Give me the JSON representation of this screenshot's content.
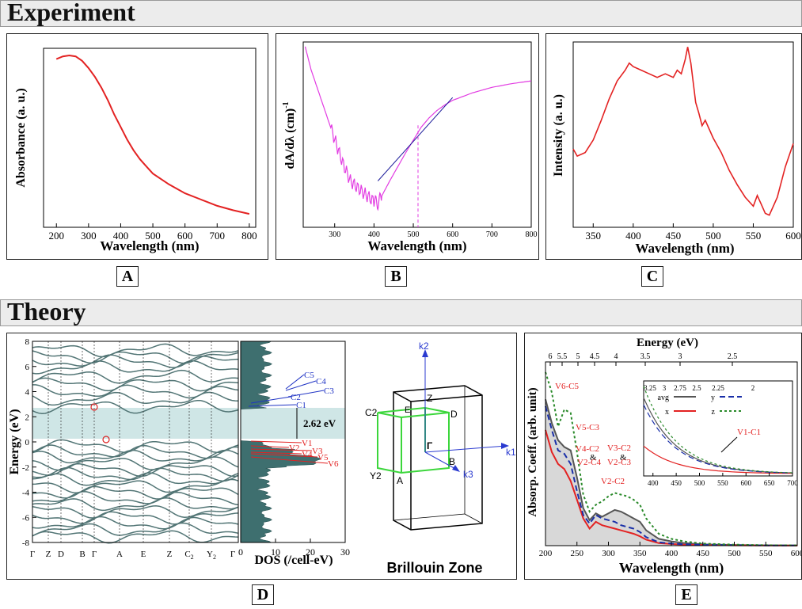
{
  "sections": {
    "experiment": "Experiment",
    "theory": "Theory"
  },
  "panel_labels": {
    "A": "A",
    "B": "B",
    "C": "C",
    "D": "D",
    "E": "E"
  },
  "chart_data": [
    {
      "type": "line",
      "panel": "A",
      "xlabel": "Wavelength (nm)",
      "ylabel": "Absorbance (a. u.)",
      "xlim": [
        160,
        820
      ],
      "ylim": [
        0,
        1.0
      ],
      "xticks": [
        200,
        300,
        400,
        500,
        600,
        700,
        800
      ],
      "series": [
        {
          "color": "#e32222",
          "x": [
            200,
            220,
            240,
            260,
            280,
            300,
            320,
            340,
            360,
            380,
            400,
            420,
            440,
            460,
            480,
            500,
            550,
            600,
            650,
            700,
            750,
            800
          ],
          "y": [
            0.94,
            0.955,
            0.96,
            0.955,
            0.93,
            0.89,
            0.84,
            0.78,
            0.71,
            0.63,
            0.56,
            0.49,
            0.43,
            0.38,
            0.34,
            0.3,
            0.24,
            0.19,
            0.155,
            0.12,
            0.095,
            0.075
          ]
        }
      ]
    },
    {
      "type": "line",
      "panel": "B",
      "xlabel": "Wavelength (nm)",
      "ylabel": "dA/dλ (cm)",
      "ylabel_superscript": "-1",
      "xlim": [
        220,
        800
      ],
      "ylim": [
        -1.0,
        1.0
      ],
      "xticks": [
        300,
        400,
        500,
        600,
        700,
        800
      ],
      "series": [
        {
          "color": "#e23be2",
          "x": [
            225,
            240,
            260,
            280,
            300,
            320,
            340,
            360,
            380,
            400,
            410,
            420,
            440,
            460,
            480,
            500,
            520,
            540,
            560,
            580,
            600,
            650,
            700,
            750,
            800
          ],
          "y": [
            0.95,
            0.7,
            0.45,
            0.2,
            -0.05,
            -0.3,
            -0.5,
            -0.58,
            -0.65,
            -0.72,
            -0.74,
            -0.66,
            -0.5,
            -0.35,
            -0.2,
            -0.06,
            0.08,
            0.18,
            0.26,
            0.32,
            0.37,
            0.45,
            0.51,
            0.55,
            0.58
          ]
        },
        {
          "color": "#1c1c9a",
          "x": [
            410,
            600
          ],
          "y": [
            -0.5,
            0.4
          ]
        }
      ],
      "vline": {
        "x": 512,
        "color": "#e23be2"
      }
    },
    {
      "type": "line",
      "panel": "C",
      "xlabel": "Wavelength (nm)",
      "ylabel": "Intensity (a. u.)",
      "xlim": [
        325,
        600
      ],
      "ylim": [
        0,
        1.0
      ],
      "xticks": [
        350,
        400,
        450,
        500,
        550,
        600
      ],
      "series": [
        {
          "color": "#e32222",
          "x": [
            325,
            330,
            340,
            350,
            360,
            370,
            380,
            390,
            395,
            400,
            410,
            420,
            430,
            440,
            450,
            455,
            460,
            465,
            468,
            472,
            478,
            482,
            486,
            490,
            500,
            510,
            520,
            530,
            540,
            550,
            555,
            560,
            565,
            570,
            580,
            590,
            600
          ],
          "y": [
            0.42,
            0.38,
            0.4,
            0.47,
            0.58,
            0.7,
            0.8,
            0.86,
            0.9,
            0.88,
            0.86,
            0.84,
            0.82,
            0.84,
            0.82,
            0.86,
            0.84,
            0.92,
            0.99,
            0.9,
            0.68,
            0.62,
            0.55,
            0.58,
            0.48,
            0.4,
            0.3,
            0.22,
            0.15,
            0.1,
            0.16,
            0.11,
            0.06,
            0.05,
            0.15,
            0.32,
            0.45
          ]
        }
      ]
    },
    {
      "type": "line",
      "panel": "D-bands",
      "ylabel": "Energy (eV)",
      "ylim": [
        -8,
        8
      ],
      "yticks": [
        -8,
        -6,
        -4,
        -2,
        0,
        2,
        4,
        6,
        8
      ],
      "kpoints": [
        "Γ",
        "Z",
        "D",
        "B",
        "Γ",
        "A",
        "E",
        "Z",
        "C",
        "Y",
        "Γ"
      ],
      "kpoint_subscripts": {
        "8": "2",
        "9": "2"
      },
      "gap_region": [
        0.1,
        2.62
      ],
      "band_color": "#527575"
    },
    {
      "type": "area",
      "panel": "D-dos",
      "xlabel": "DOS (/cell-eV)",
      "xlim": [
        0,
        30
      ],
      "xticks": [
        0,
        10,
        20,
        30
      ],
      "gap_label": "2.62 eV",
      "fill_color": "#3e6f6f",
      "transitions": [
        {
          "label": "C5",
          "color": "#1f33c4"
        },
        {
          "label": "C4",
          "color": "#1f33c4"
        },
        {
          "label": "C3",
          "color": "#1f33c4"
        },
        {
          "label": "C2",
          "color": "#1f33c4"
        },
        {
          "label": "C1",
          "color": "#1f33c4"
        },
        {
          "label": "V1",
          "color": "#e32222"
        },
        {
          "label": "V2",
          "color": "#e32222"
        },
        {
          "label": "V3",
          "color": "#e32222"
        },
        {
          "label": "V4",
          "color": "#e32222"
        },
        {
          "label": "V5",
          "color": "#e32222"
        },
        {
          "label": "V6",
          "color": "#e32222"
        }
      ]
    },
    {
      "type": "diagram",
      "panel": "D-bz",
      "title": "Brillouin Zone",
      "points": [
        "k2",
        "k1",
        "k3",
        "Z",
        "C2",
        "D",
        "E",
        "Γ",
        "Y2",
        "A",
        "B"
      ]
    },
    {
      "type": "line",
      "panel": "E",
      "xlabel": "Wavelength (nm)",
      "ylabel": "Absorp. Coeff. (arb. unit)",
      "x2label": "Energy (eV)",
      "xlim": [
        200,
        600
      ],
      "xticks": [
        200,
        250,
        300,
        350,
        400,
        450,
        500,
        550,
        600
      ],
      "x2ticks": [
        "6",
        "5.5",
        "5",
        "4.5",
        "4",
        "3.5",
        "3",
        "2.5"
      ],
      "series": [
        {
          "name": "avg",
          "color": "#555555",
          "fill": "#d8d8d8",
          "x": [
            200,
            210,
            220,
            230,
            240,
            250,
            260,
            270,
            280,
            290,
            300,
            310,
            320,
            330,
            340,
            350,
            360,
            380,
            400,
            420,
            450,
            500,
            550,
            600
          ],
          "y": [
            0.86,
            0.72,
            0.62,
            0.58,
            0.56,
            0.4,
            0.22,
            0.15,
            0.19,
            0.17,
            0.19,
            0.21,
            0.2,
            0.18,
            0.16,
            0.14,
            0.09,
            0.04,
            0.025,
            0.015,
            0.008,
            0.004,
            0.002,
            0.001
          ]
        },
        {
          "name": "x",
          "color": "#e32222",
          "x": [
            200,
            210,
            220,
            230,
            240,
            250,
            260,
            270,
            280,
            290,
            300,
            310,
            320,
            330,
            340,
            350,
            360,
            380,
            400,
            420,
            450,
            500,
            550,
            600
          ],
          "y": [
            0.68,
            0.55,
            0.48,
            0.45,
            0.38,
            0.27,
            0.16,
            0.1,
            0.14,
            0.12,
            0.11,
            0.1,
            0.09,
            0.08,
            0.07,
            0.055,
            0.035,
            0.015,
            0.01,
            0.006,
            0.004,
            0.002,
            0.001,
            0.0005
          ]
        },
        {
          "name": "y",
          "color": "#1a2fa8",
          "x": [
            200,
            210,
            220,
            230,
            240,
            250,
            260,
            270,
            280,
            290,
            300,
            310,
            320,
            330,
            340,
            350,
            360,
            380,
            400,
            420,
            450,
            500,
            550,
            600
          ],
          "y": [
            0.82,
            0.68,
            0.56,
            0.54,
            0.48,
            0.32,
            0.18,
            0.13,
            0.18,
            0.16,
            0.15,
            0.14,
            0.12,
            0.11,
            0.1,
            0.08,
            0.05,
            0.02,
            0.012,
            0.008,
            0.005,
            0.003,
            0.0015,
            0.001
          ]
        },
        {
          "name": "z",
          "color": "#2a8a2a",
          "x": [
            200,
            210,
            220,
            230,
            240,
            250,
            260,
            270,
            280,
            290,
            300,
            310,
            320,
            330,
            340,
            350,
            360,
            380,
            400,
            420,
            450,
            500,
            550,
            600
          ],
          "y": [
            1.02,
            0.9,
            0.7,
            0.8,
            0.78,
            0.55,
            0.3,
            0.2,
            0.24,
            0.26,
            0.29,
            0.31,
            0.3,
            0.29,
            0.27,
            0.24,
            0.16,
            0.07,
            0.04,
            0.025,
            0.012,
            0.006,
            0.003,
            0.002
          ]
        }
      ],
      "peak_labels": [
        "V6-C5",
        "V5-C3",
        "V4-C2",
        "&",
        "V2-C4",
        "V3-C2",
        "&",
        "V2-C3",
        "V2-C2"
      ],
      "inset": {
        "xlim": [
          380,
          700
        ],
        "xticks": [
          400,
          450,
          500,
          550,
          600,
          650,
          700
        ],
        "x2ticks": [
          "3.25",
          "3",
          "2.75",
          "2.5",
          "2.25",
          "2"
        ],
        "annotation": "V1-C1",
        "legend": [
          "avg",
          "y",
          "x",
          "z"
        ]
      }
    }
  ]
}
